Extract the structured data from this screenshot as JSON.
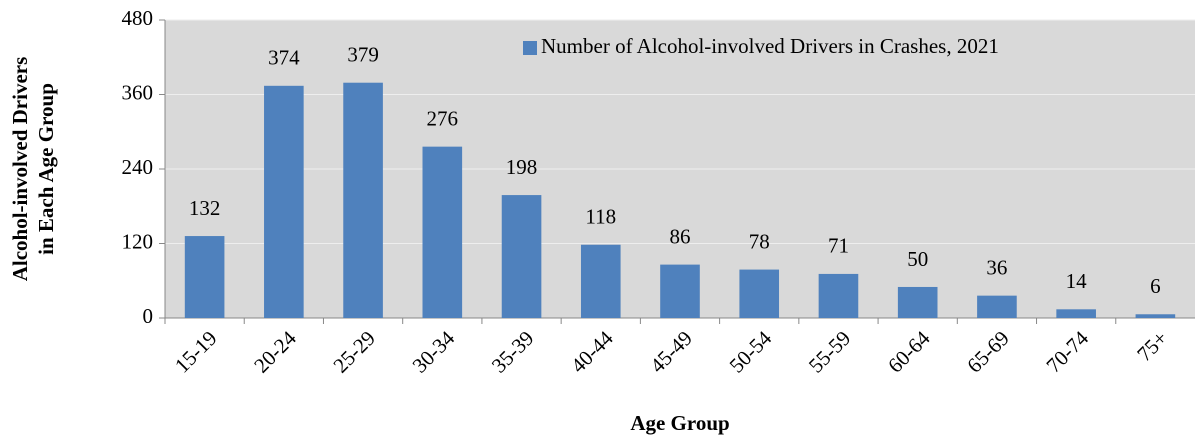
{
  "chart_data": {
    "type": "bar",
    "y_label": [
      "Alcohol-involved Drivers",
      "in Each Age Group"
    ],
    "x_label": "Age Group",
    "categories": [
      "15-19",
      "20-24",
      "25-29",
      "30-34",
      "35-39",
      "40-44",
      "45-49",
      "50-54",
      "55-59",
      "60-64",
      "65-69",
      "70-74",
      "75+"
    ],
    "series": [
      {
        "name": "Number of Alcohol-involved Drivers in Crashes, 2021",
        "color": "#4f81bd",
        "values": [
          132,
          374,
          379,
          276,
          198,
          118,
          86,
          78,
          71,
          50,
          36,
          14,
          6
        ]
      }
    ],
    "ylim": [
      0,
      480
    ],
    "yticks": [
      0,
      120,
      240,
      360,
      480
    ],
    "grid": true,
    "legend": "top-right"
  }
}
